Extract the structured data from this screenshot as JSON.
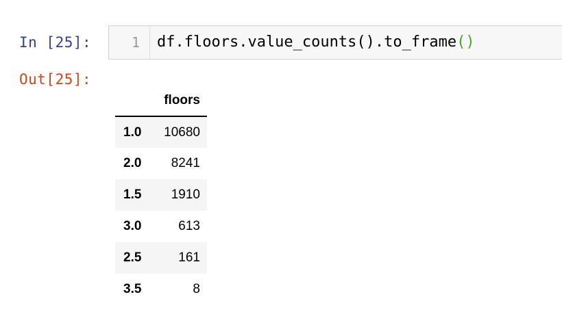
{
  "cell": {
    "in_prompt": "In [25]:",
    "out_prompt": "Out[25]:",
    "line_number": "1",
    "code_main": "df.floors.value_counts().to_frame",
    "code_brackets": "()"
  },
  "table": {
    "index_header": "",
    "column_header": "floors",
    "rows": [
      {
        "index": "1.0",
        "value": "10680"
      },
      {
        "index": "2.0",
        "value": "8241"
      },
      {
        "index": "1.5",
        "value": "1910"
      },
      {
        "index": "3.0",
        "value": "613"
      },
      {
        "index": "2.5",
        "value": "161"
      },
      {
        "index": "3.5",
        "value": "8"
      }
    ]
  }
}
